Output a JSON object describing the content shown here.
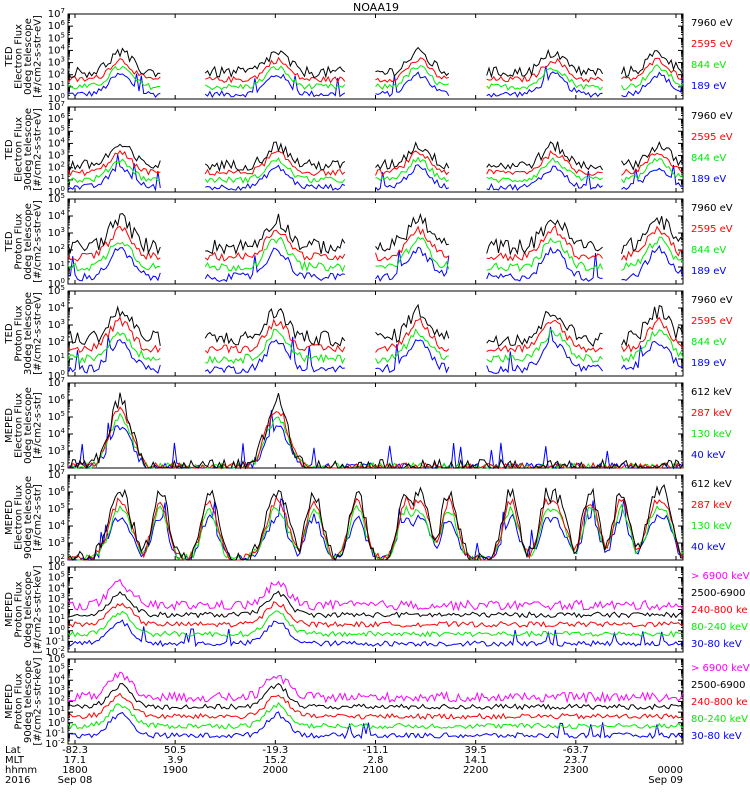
{
  "title": "NOAA19",
  "colors": {
    "black": "#000000",
    "red": "#ff0000",
    "green": "#00ee00",
    "blue": "#0000ff",
    "magenta": "#ff00ff"
  },
  "chart_data": [
    {
      "type": "line",
      "ylabel": [
        "TED",
        "Electron Flux",
        "0deg telescope",
        "[#/cm2-s-str-eV]"
      ],
      "yscale": "log",
      "ylim_exp": [
        0,
        7
      ],
      "channels": [
        {
          "label": "7960 eV",
          "color": "black"
        },
        {
          "label": "2595 eV",
          "color": "red"
        },
        {
          "label": "844 eV",
          "color": "green"
        },
        {
          "label": "189 eV",
          "color": "blue"
        }
      ]
    },
    {
      "type": "line",
      "ylabel": [
        "TED",
        "Electron Flux",
        "30deg telescope",
        "[#/cm2-s-str-eV]"
      ],
      "yscale": "log",
      "ylim_exp": [
        0,
        7
      ],
      "channels": [
        {
          "label": "7960 eV",
          "color": "black"
        },
        {
          "label": "2595 eV",
          "color": "red"
        },
        {
          "label": "844 eV",
          "color": "green"
        },
        {
          "label": "189 eV",
          "color": "blue"
        }
      ]
    },
    {
      "type": "line",
      "ylabel": [
        "TED",
        "Proton Flux",
        "0deg telescope",
        "[#/cm2-s-str-eV]"
      ],
      "yscale": "log",
      "ylim_exp": [
        0,
        5
      ],
      "channels": [
        {
          "label": "7960 eV",
          "color": "black"
        },
        {
          "label": "2595 eV",
          "color": "red"
        },
        {
          "label": "844 eV",
          "color": "green"
        },
        {
          "label": "189 eV",
          "color": "blue"
        }
      ]
    },
    {
      "type": "line",
      "ylabel": [
        "TED",
        "Proton Flux",
        "30deg telescope",
        "[#/cm2-s-str-eV]"
      ],
      "yscale": "log",
      "ylim_exp": [
        0,
        5
      ],
      "channels": [
        {
          "label": "7960 eV",
          "color": "black"
        },
        {
          "label": "2595 eV",
          "color": "red"
        },
        {
          "label": "844 eV",
          "color": "green"
        },
        {
          "label": "189 eV",
          "color": "blue"
        }
      ]
    },
    {
      "type": "line",
      "ylabel": [
        "MEPED",
        "Electron Flux",
        "0deg telescope",
        "[#/cm2-s-str]"
      ],
      "yscale": "log",
      "ylim_exp": [
        2,
        7
      ],
      "channels": [
        {
          "label": "612 keV",
          "color": "black"
        },
        {
          "label": "287 keV",
          "color": "red"
        },
        {
          "label": "130 keV",
          "color": "green"
        },
        {
          "label": "40 keV",
          "color": "blue"
        }
      ]
    },
    {
      "type": "line",
      "ylabel": [
        "MEPED",
        "Electron Flux",
        "90deg telescope",
        "[#/cm2-s-str]"
      ],
      "yscale": "log",
      "ylim_exp": [
        2,
        7
      ],
      "channels": [
        {
          "label": "612 keV",
          "color": "black"
        },
        {
          "label": "287 keV",
          "color": "red"
        },
        {
          "label": "130 keV",
          "color": "green"
        },
        {
          "label": "40 keV",
          "color": "blue"
        }
      ]
    },
    {
      "type": "line",
      "ylabel": [
        "MEPED",
        "Proton Flux",
        "0deg telescope",
        "[#/cm2-s-str-keV]"
      ],
      "yscale": "log",
      "ylim_exp": [
        -2,
        6
      ],
      "channels": [
        {
          "label": "> 6900 keV",
          "color": "magenta"
        },
        {
          "label": "2500-6900",
          "color": "black"
        },
        {
          "label": "240-800 ke",
          "color": "red"
        },
        {
          "label": "80-240 keV",
          "color": "green"
        },
        {
          "label": "30-80 keV",
          "color": "blue"
        }
      ]
    },
    {
      "type": "line",
      "ylabel": [
        "MEPED",
        "Proton Flux",
        "90deg telescope",
        "[#/cm2-s-str-keV]"
      ],
      "yscale": "log",
      "ylim_exp": [
        -2,
        6
      ],
      "channels": [
        {
          "label": "> 6900 keV",
          "color": "magenta"
        },
        {
          "label": "2500-6900",
          "color": "black"
        },
        {
          "label": "240-800 ke",
          "color": "red"
        },
        {
          "label": "80-240 keV",
          "color": "green"
        },
        {
          "label": "30-80 keV",
          "color": "blue"
        }
      ]
    }
  ],
  "x_axis": {
    "row_labels": [
      "Lat",
      "MLT",
      "hhmm",
      "2016"
    ],
    "ticks": [
      {
        "lat": "-82.3",
        "mlt": "17.1",
        "hhmm": "1800",
        "date": "Sep 08"
      },
      {
        "lat": "50.5",
        "mlt": "3.9",
        "hhmm": "1900",
        "date": ""
      },
      {
        "lat": "-19.3",
        "mlt": "15.2",
        "hhmm": "2000",
        "date": ""
      },
      {
        "lat": "-11.1",
        "mlt": "2.8",
        "hhmm": "2100",
        "date": ""
      },
      {
        "lat": "39.5",
        "mlt": "14.1",
        "hhmm": "2200",
        "date": ""
      },
      {
        "lat": "-63.7",
        "mlt": "23.7",
        "hhmm": "2300",
        "date": ""
      },
      {
        "lat": "",
        "mlt": "",
        "hhmm": "0000",
        "date": "Sep 09"
      }
    ]
  }
}
